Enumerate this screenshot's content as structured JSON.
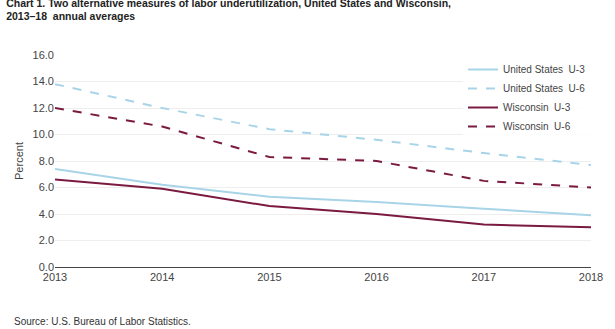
{
  "chart_data": {
    "type": "line",
    "title": "Chart 1. Two alternative measures of labor underutilization, United States and Wisconsin,",
    "subtitle": "2013–18  annual averages",
    "ylabel": "Percent",
    "annotations": [
      "Source: U.S. Bureau of Labor Statistics."
    ],
    "x": [
      2013,
      2014,
      2015,
      2016,
      2017,
      2018
    ],
    "series": [
      {
        "name": "United States  U-3",
        "color": "#a8d4e8",
        "line_style": "solid",
        "values": [
          7.4,
          6.2,
          5.3,
          4.9,
          4.4,
          3.9
        ]
      },
      {
        "name": "United States  U-6",
        "color": "#a8d4e8",
        "line_style": "dashed",
        "values": [
          13.8,
          12.0,
          10.4,
          9.6,
          8.6,
          7.7
        ]
      },
      {
        "name": "Wisconsin  U-3",
        "color": "#7b1a40",
        "line_style": "solid",
        "values": [
          6.6,
          5.9,
          4.6,
          4.0,
          3.2,
          3.0
        ]
      },
      {
        "name": "Wisconsin  U-6",
        "color": "#7b1a40",
        "line_style": "dashed",
        "values": [
          12.0,
          10.6,
          8.3,
          8.0,
          6.5,
          6.0
        ]
      }
    ],
    "xlim": [
      2013,
      2018
    ],
    "xticks": [
      2013,
      2014,
      2015,
      2016,
      2017,
      2018
    ],
    "ylim": [
      0,
      16.0
    ],
    "yticks": [
      {
        "value": 0.0,
        "label": "0.0"
      },
      {
        "value": 2.0,
        "label": "2.0"
      },
      {
        "value": 4.0,
        "label": "4.0"
      },
      {
        "value": 6.0,
        "label": "6.0"
      },
      {
        "value": 8.0,
        "label": "8.0"
      },
      {
        "value": 10.0,
        "label": "10.0"
      },
      {
        "value": 12.0,
        "label": "12.0"
      },
      {
        "value": 14.0,
        "label": "14.0"
      },
      {
        "value": 16.0,
        "label": "16.0"
      }
    ],
    "grid": true,
    "legend": "upper right"
  }
}
